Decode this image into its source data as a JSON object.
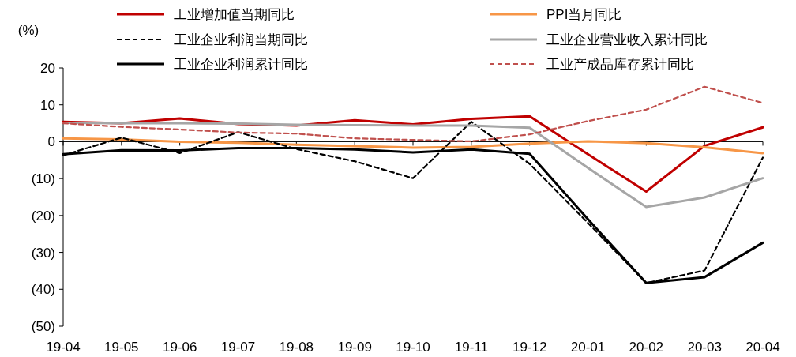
{
  "chart_data": {
    "type": "line",
    "ylabel": "(%)",
    "categories": [
      "19-04",
      "19-05",
      "19-06",
      "19-07",
      "19-08",
      "19-09",
      "19-10",
      "19-11",
      "19-12",
      "20-01",
      "20-02",
      "20-03",
      "20-04"
    ],
    "series": [
      {
        "name": "工业增加值当期同比",
        "color": "#c00000",
        "line_style": "solid",
        "values": [
          5.4,
          5.0,
          6.3,
          4.8,
          4.4,
          5.8,
          4.7,
          6.2,
          6.9,
          -3.4,
          -13.5,
          -1.1,
          3.9
        ]
      },
      {
        "name": "PPI当月同比",
        "color": "#f79646",
        "line_style": "solid",
        "values": [
          0.9,
          0.6,
          0.0,
          -0.3,
          -0.8,
          -1.2,
          -1.6,
          -1.4,
          -0.5,
          0.1,
          -0.4,
          -1.5,
          -3.1
        ]
      },
      {
        "name": "工业企业利润当期同比",
        "color": "#000000",
        "line_style": "dashed",
        "values": [
          -3.7,
          1.1,
          -3.1,
          2.6,
          -2.0,
          -5.3,
          -9.9,
          5.4,
          -6.0,
          -22.0,
          -38.3,
          -34.9,
          -4.3
        ]
      },
      {
        "name": "工业企业营业收入累计同比",
        "color": "#a6a6a6",
        "line_style": "solid",
        "values": [
          5.1,
          5.0,
          5.0,
          4.9,
          4.6,
          4.5,
          4.4,
          4.4,
          3.8,
          -7.1,
          -17.7,
          -15.1,
          -9.9
        ]
      },
      {
        "name": "工业企业利润累计同比",
        "color": "#000000",
        "line_style": "solid",
        "values": [
          -3.4,
          -2.3,
          -2.4,
          -1.7,
          -1.7,
          -2.1,
          -2.9,
          -2.1,
          -3.3,
          -21.0,
          -38.3,
          -36.7,
          -27.4
        ]
      },
      {
        "name": "工业产成品库存累计同比",
        "color": "#c0504d",
        "line_style": "dashed",
        "values": [
          5.0,
          4.0,
          3.3,
          2.5,
          2.2,
          0.9,
          0.5,
          0.1,
          2.0,
          5.6,
          8.7,
          14.9,
          10.5
        ]
      }
    ],
    "ylim": [
      -50,
      20
    ],
    "yticks": [
      20,
      10,
      0,
      {
        "value": -10,
        "label": "(10)"
      },
      {
        "value": -20,
        "label": "(20)"
      },
      {
        "value": -30,
        "label": "(30)"
      },
      {
        "value": -40,
        "label": "(40)"
      },
      {
        "value": -50,
        "label": "(50)"
      }
    ],
    "legend": "top"
  }
}
